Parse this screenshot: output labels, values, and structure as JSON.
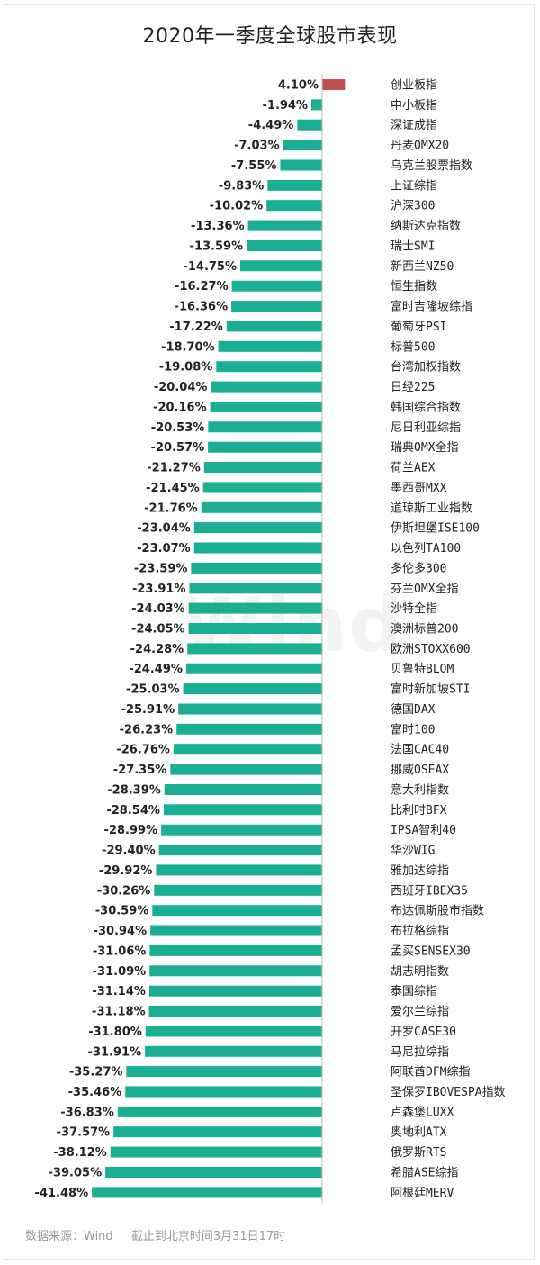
{
  "chart_data": {
    "type": "bar",
    "orientation": "horizontal",
    "title": "2020年一季度全球股市表现",
    "value_labels": [
      "4.10%",
      "-1.94%",
      "-4.49%",
      "-7.03%",
      "-7.55%",
      "-9.83%",
      "-10.02%",
      "-13.36%",
      "-13.59%",
      "-14.75%",
      "-16.27%",
      "-16.36%",
      "-17.22%",
      "-18.70%",
      "-19.08%",
      "-20.04%",
      "-20.16%",
      "-20.53%",
      "-20.57%",
      "-21.27%",
      "-21.45%",
      "-21.76%",
      "-23.04%",
      "-23.07%",
      "-23.59%",
      "-23.91%",
      "-24.03%",
      "-24.05%",
      "-24.28%",
      "-24.49%",
      "-25.03%",
      "-25.91%",
      "-26.23%",
      "-26.76%",
      "-27.35%",
      "-28.39%",
      "-28.54%",
      "-28.99%",
      "-29.40%",
      "-29.92%",
      "-30.26%",
      "-30.59%",
      "-30.94%",
      "-31.06%",
      "-31.09%",
      "-31.14%",
      "-31.18%",
      "-31.80%",
      "-31.91%",
      "-35.27%",
      "-35.46%",
      "-36.83%",
      "-37.57%",
      "-38.12%",
      "-39.05%",
      "-41.48%"
    ],
    "categories": [
      "创业板指",
      "中小板指",
      "深证成指",
      "丹麦OMX20",
      "乌克兰股票指数",
      "上证综指",
      "沪深300",
      "纳斯达克指数",
      "瑞士SMI",
      "新西兰NZ50",
      "恒生指数",
      "富时吉隆坡综指",
      "葡萄牙PSI",
      "标普500",
      "台湾加权指数",
      "日经225",
      "韩国综合指数",
      "尼日利亚综指",
      "瑞典OMX全指",
      "荷兰AEX",
      "墨西哥MXX",
      "道琼斯工业指数",
      "伊斯坦堡ISE100",
      "以色列TA100",
      "多伦多300",
      "芬兰OMX全指",
      "沙特全指",
      "澳洲标普200",
      "欧洲STOXX600",
      "贝鲁特BLOM",
      "富时新加坡STI",
      "德国DAX",
      "富时100",
      "法国CAC40",
      "挪威OSEAX",
      "意大利指数",
      "比利时BFX",
      "IPSA智利40",
      "华沙WIG",
      "雅加达综指",
      "西班牙IBEX35",
      "布达佩斯股市指数",
      "布拉格综指",
      "孟买SENSEX30",
      "胡志明指数",
      "泰国综指",
      "爱尔兰综指",
      "开罗CASE30",
      "马尼拉综指",
      "阿联酋DFM综指",
      "圣保罗IBOVESPA指数",
      "卢森堡LUXX",
      "奥地利ATX",
      "俄罗斯RTS",
      "希腊ASE综指",
      "阿根廷MERV"
    ],
    "values": [
      4.1,
      -1.94,
      -4.49,
      -7.03,
      -7.55,
      -9.83,
      -10.02,
      -13.36,
      -13.59,
      -14.75,
      -16.27,
      -16.36,
      -17.22,
      -18.7,
      -19.08,
      -20.04,
      -20.16,
      -20.53,
      -20.57,
      -21.27,
      -21.45,
      -21.76,
      -23.04,
      -23.07,
      -23.59,
      -23.91,
      -24.03,
      -24.05,
      -24.28,
      -24.49,
      -25.03,
      -25.91,
      -26.23,
      -26.76,
      -27.35,
      -28.39,
      -28.54,
      -28.99,
      -29.4,
      -29.92,
      -30.26,
      -30.59,
      -30.94,
      -31.06,
      -31.09,
      -31.14,
      -31.18,
      -31.8,
      -31.91,
      -35.27,
      -35.46,
      -36.83,
      -37.57,
      -38.12,
      -39.05,
      -41.48
    ],
    "value_unit": "%",
    "colors": {
      "positive": "#c0504d",
      "negative": "#1aae92"
    },
    "grid": false,
    "legend": "none"
  },
  "watermark": "Wind",
  "footer": {
    "source": "数据来源：Wind",
    "as_of": "截止到北京时间3月31日17时"
  }
}
